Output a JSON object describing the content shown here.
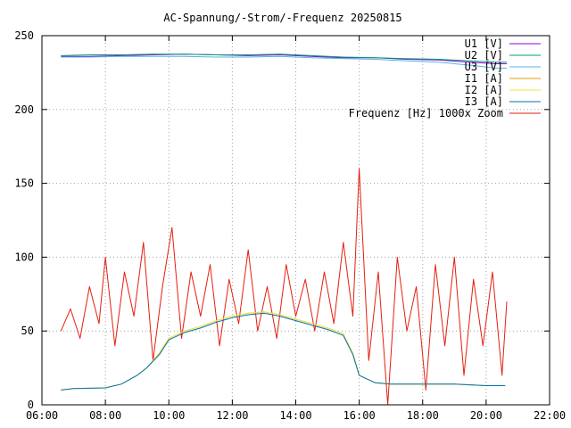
{
  "chart_data": {
    "type": "line",
    "title": "AC-Spannung/-Strom/-Frequenz 20250815",
    "xlabel": "",
    "ylabel": "",
    "x_unit": "time (HH:MM)",
    "xlim": [
      6,
      22
    ],
    "ylim": [
      0,
      250
    ],
    "x_ticks": [
      "06:00",
      "08:00",
      "10:00",
      "12:00",
      "14:00",
      "16:00",
      "18:00",
      "20:00",
      "22:00"
    ],
    "y_ticks": [
      "0",
      "50",
      "100",
      "150",
      "200",
      "250"
    ],
    "grid": true,
    "legend_position": "top-right",
    "series": [
      {
        "name": "U1 [V]",
        "color": "#9400d3",
        "x": [
          6.6,
          7.5,
          8.5,
          9.5,
          10.5,
          11.5,
          12.5,
          13.5,
          14.5,
          15.5,
          16.5,
          17.5,
          18.5,
          19.5,
          20.3,
          20.65
        ],
        "y": [
          236,
          236,
          236.5,
          237,
          237.5,
          237,
          236.5,
          237,
          236,
          235,
          235,
          234,
          233.5,
          232,
          231,
          231
        ]
      },
      {
        "name": "U2 [V]",
        "color": "#009e73",
        "x": [
          6.6,
          7.5,
          8.5,
          9.5,
          10.5,
          11.5,
          12.5,
          13.5,
          14.5,
          15.5,
          16.5,
          17.5,
          18.5,
          19.5,
          20.3,
          20.65
        ],
        "y": [
          236.5,
          237,
          237,
          237.5,
          237.5,
          237,
          237,
          237.5,
          236.5,
          235.5,
          235,
          234.5,
          234,
          233,
          232,
          232
        ]
      },
      {
        "name": "U3 [V]",
        "color": "#56b4e9",
        "x": [
          6.6,
          7.5,
          8.5,
          9.5,
          10.5,
          11.5,
          12.5,
          13.5,
          14.5,
          15.5,
          16.5,
          17.5,
          18.5,
          19.5,
          20.3,
          20.65
        ],
        "y": [
          235.5,
          235.5,
          236,
          236,
          236,
          235.5,
          235.5,
          236,
          235,
          234.5,
          234,
          233,
          232,
          230,
          228,
          228
        ]
      },
      {
        "name": "I1 [A]",
        "color": "#e69f00",
        "x": [
          6.6,
          7.0,
          8.0,
          8.5,
          9.0,
          9.3,
          9.7,
          10.0,
          10.5,
          11.0,
          11.5,
          12.0,
          12.5,
          13.0,
          13.5,
          14.0,
          14.5,
          15.0,
          15.5,
          15.8,
          16.0,
          16.5,
          17.0,
          18.0,
          19.0,
          20.0,
          20.6
        ],
        "y": [
          10,
          11,
          11.5,
          14,
          20,
          25,
          35,
          45,
          50,
          53,
          57,
          60,
          62,
          63,
          61,
          58,
          55,
          52,
          48,
          35,
          20,
          15,
          14,
          14,
          14,
          13,
          13
        ]
      },
      {
        "name": "I2 [A]",
        "color": "#f0e442",
        "x": [
          6.6,
          7.0,
          8.0,
          8.5,
          9.0,
          9.3,
          9.7,
          10.0,
          10.5,
          11.0,
          11.5,
          12.0,
          12.5,
          13.0,
          13.5,
          14.0,
          14.5,
          15.0,
          15.5,
          15.8,
          16.0,
          16.5,
          17.0,
          18.0,
          19.0,
          20.0,
          20.6
        ],
        "y": [
          10,
          11,
          11.5,
          14,
          20,
          25,
          35,
          45,
          50,
          53,
          57,
          60,
          62,
          63,
          61,
          58,
          55,
          52,
          48,
          35,
          20,
          15,
          14,
          14,
          14,
          13,
          13
        ]
      },
      {
        "name": "I3 [A]",
        "color": "#0072b2",
        "x": [
          6.6,
          7.0,
          8.0,
          8.5,
          9.0,
          9.3,
          9.7,
          10.0,
          10.5,
          11.0,
          11.5,
          12.0,
          12.5,
          13.0,
          13.5,
          14.0,
          14.5,
          15.0,
          15.5,
          15.8,
          16.0,
          16.5,
          17.0,
          18.0,
          19.0,
          20.0,
          20.6
        ],
        "y": [
          10,
          11,
          11.5,
          14,
          20,
          25,
          34,
          44,
          49,
          52,
          56,
          59,
          61,
          62,
          60,
          57,
          54,
          51,
          47,
          34,
          20,
          15,
          14,
          14,
          14,
          13,
          13
        ]
      },
      {
        "name": "Frequenz [Hz] 1000x Zoom",
        "color": "#e51e10",
        "x": [
          6.6,
          6.9,
          7.2,
          7.5,
          7.8,
          8.0,
          8.3,
          8.6,
          8.9,
          9.2,
          9.5,
          9.8,
          10.1,
          10.4,
          10.7,
          11.0,
          11.3,
          11.6,
          11.9,
          12.2,
          12.5,
          12.8,
          13.1,
          13.4,
          13.7,
          14.0,
          14.3,
          14.6,
          14.9,
          15.2,
          15.5,
          15.8,
          16.0,
          16.3,
          16.6,
          16.9,
          17.2,
          17.5,
          17.8,
          18.1,
          18.4,
          18.7,
          19.0,
          19.3,
          19.6,
          19.9,
          20.2,
          20.5,
          20.65
        ],
        "y": [
          50,
          65,
          45,
          80,
          55,
          100,
          40,
          90,
          60,
          110,
          30,
          80,
          120,
          45,
          90,
          60,
          95,
          40,
          85,
          55,
          105,
          50,
          80,
          45,
          95,
          60,
          85,
          50,
          90,
          55,
          110,
          60,
          160,
          30,
          90,
          0,
          100,
          50,
          80,
          10,
          95,
          40,
          100,
          20,
          85,
          40,
          90,
          20,
          70
        ]
      }
    ]
  }
}
